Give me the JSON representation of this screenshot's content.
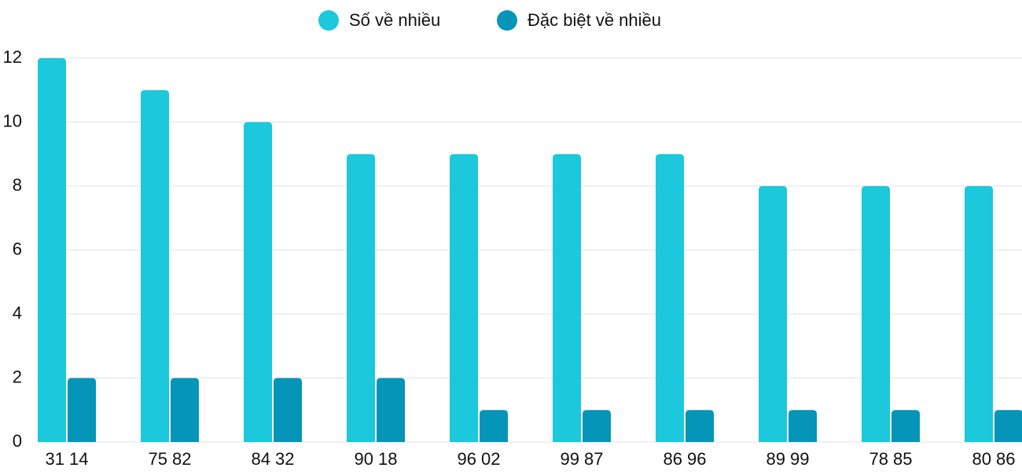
{
  "chart_data": {
    "type": "bar",
    "categories": [
      "31 14",
      "75 82",
      "84 32",
      "90 18",
      "96 02",
      "99 87",
      "86 96",
      "89 99",
      "78 85",
      "80 86"
    ],
    "series": [
      {
        "name": "Số về nhiều",
        "color": "#1bc8dc",
        "values": [
          12,
          11,
          10,
          9,
          9,
          9,
          9,
          8,
          8,
          8
        ]
      },
      {
        "name": "Đặc biệt về nhiều",
        "color": "#0595b8",
        "values": [
          2,
          2,
          2,
          2,
          1,
          1,
          1,
          1,
          1,
          1
        ]
      }
    ],
    "ylim": [
      0,
      12
    ],
    "yticks": [
      0,
      2,
      4,
      6,
      8,
      10,
      12
    ],
    "grid": true,
    "legend": "top"
  }
}
